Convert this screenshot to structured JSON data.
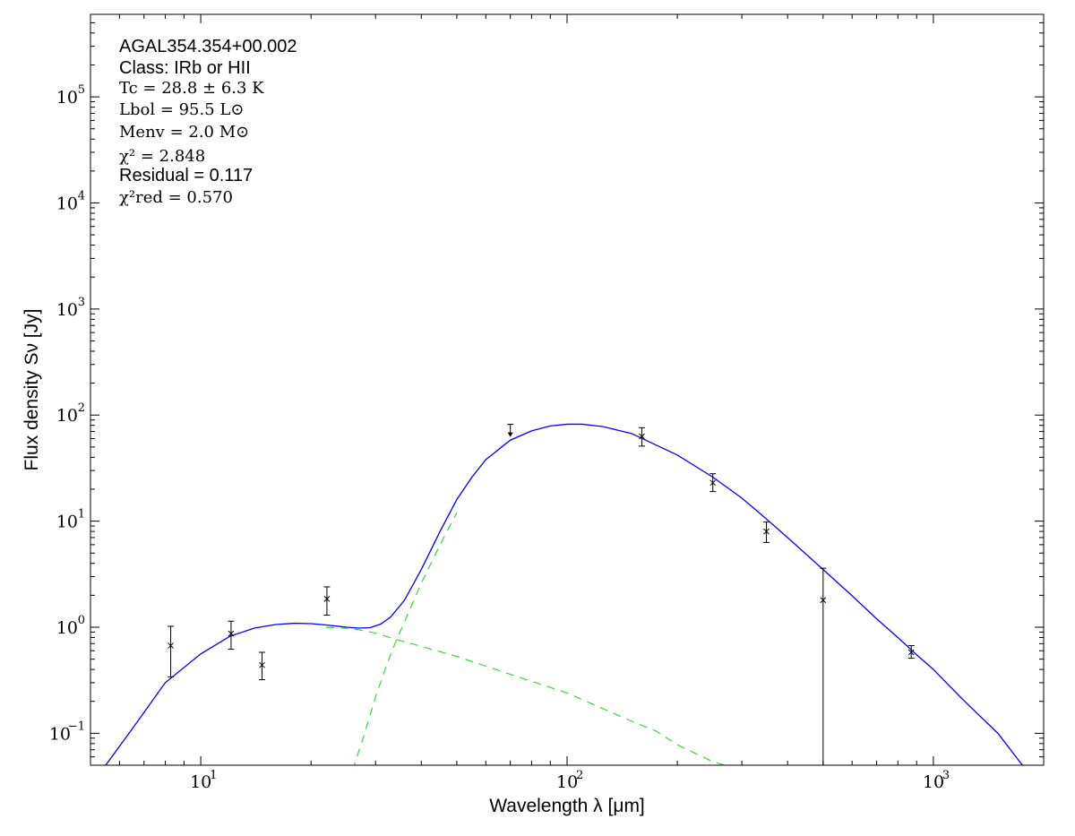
{
  "chart_data": {
    "type": "scatter",
    "x_scale": "log",
    "y_scale": "log",
    "xlim": [
      5,
      2000
    ],
    "ylim": [
      0.05,
      600000
    ],
    "xlabel": "Wavelength λ [μm]",
    "ylabel": "Flux density Sν [Jy]",
    "x_ticks": [
      {
        "value": 10,
        "base": "10",
        "exp": "1"
      },
      {
        "value": 100,
        "base": "10",
        "exp": "2"
      },
      {
        "value": 1000,
        "base": "10",
        "exp": "3"
      }
    ],
    "y_ticks": [
      {
        "value": 0.1,
        "base": "10",
        "exp": "−1"
      },
      {
        "value": 1,
        "base": "10",
        "exp": "0"
      },
      {
        "value": 10,
        "base": "10",
        "exp": "1"
      },
      {
        "value": 100,
        "base": "10",
        "exp": "2"
      },
      {
        "value": 1000,
        "base": "10",
        "exp": "3"
      },
      {
        "value": 10000,
        "base": "10",
        "exp": "4"
      },
      {
        "value": 100000,
        "base": "10",
        "exp": "5"
      }
    ],
    "annotations": [
      {
        "text": "AGAL354.354+00.002",
        "style": "sans"
      },
      {
        "text": "Class: IRb or HII",
        "style": "sans"
      },
      {
        "text": "Tc = 28.8 ± 6.3 K",
        "style": "math"
      },
      {
        "text": "Lbol = 95.5 L⊙",
        "style": "math"
      },
      {
        "text": "Menv = 2.0 M⊙",
        "style": "math"
      },
      {
        "text": "χ² = 2.848",
        "style": "math"
      },
      {
        "text": "Residual = 0.117",
        "style": "sans"
      },
      {
        "text": "χ²red = 0.570",
        "style": "math"
      }
    ],
    "series": [
      {
        "kind": "measurements",
        "color": "#000000",
        "points": [
          {
            "x": 8.28,
            "y": 0.67,
            "err_low": 0.33,
            "err_high": 0.35
          },
          {
            "x": 12.1,
            "y": 0.87,
            "err_low": 0.25,
            "err_high": 0.27
          },
          {
            "x": 14.7,
            "y": 0.44,
            "err_low": 0.12,
            "err_high": 0.14
          },
          {
            "x": 22.1,
            "y": 1.85,
            "err_low": 0.55,
            "err_high": 0.55
          },
          {
            "x": 160,
            "y": 63,
            "err_low": 12,
            "err_high": 13
          },
          {
            "x": 250,
            "y": 23,
            "err_low": 4,
            "err_high": 5
          },
          {
            "x": 350,
            "y": 8,
            "err_low": 1.7,
            "err_high": 1.8
          },
          {
            "x": 500,
            "y": 1.8,
            "err_low": 1.8,
            "err_high": 1.8
          },
          {
            "x": 870,
            "y": 0.58,
            "err_low": 0.07,
            "err_high": 0.09
          }
        ]
      },
      {
        "kind": "upper_limit",
        "color": "#000000",
        "points": [
          {
            "x": 70,
            "y": 70
          }
        ]
      },
      {
        "kind": "fit_total",
        "color": "#0000ff",
        "style": "solid",
        "points": [
          [
            5.5,
            0.05
          ],
          [
            6.5,
            0.11
          ],
          [
            8,
            0.3
          ],
          [
            10,
            0.56
          ],
          [
            12,
            0.82
          ],
          [
            14,
            0.98
          ],
          [
            16,
            1.06
          ],
          [
            18,
            1.09
          ],
          [
            20,
            1.08
          ],
          [
            22,
            1.05
          ],
          [
            25,
            1.0
          ],
          [
            27,
            0.98
          ],
          [
            29,
            0.99
          ],
          [
            31,
            1.07
          ],
          [
            33,
            1.25
          ],
          [
            36,
            1.8
          ],
          [
            40,
            3.5
          ],
          [
            45,
            8
          ],
          [
            50,
            16
          ],
          [
            55,
            26
          ],
          [
            60,
            38
          ],
          [
            70,
            58
          ],
          [
            80,
            71
          ],
          [
            90,
            79
          ],
          [
            100,
            82
          ],
          [
            110,
            82
          ],
          [
            125,
            78
          ],
          [
            150,
            67
          ],
          [
            200,
            42
          ],
          [
            250,
            26
          ],
          [
            300,
            16.5
          ],
          [
            350,
            10.5
          ],
          [
            400,
            7
          ],
          [
            500,
            3.5
          ],
          [
            600,
            1.98
          ],
          [
            700,
            1.2
          ],
          [
            800,
            0.8
          ],
          [
            900,
            0.55
          ],
          [
            1000,
            0.4
          ],
          [
            1200,
            0.21
          ],
          [
            1500,
            0.1
          ],
          [
            1750,
            0.05
          ]
        ]
      },
      {
        "kind": "fit_component",
        "color": "#33dd33",
        "style": "dashed",
        "points": [
          [
            22,
            1.0
          ],
          [
            26,
            0.97
          ],
          [
            30,
            0.88
          ],
          [
            34,
            0.77
          ],
          [
            40,
            0.66
          ],
          [
            50,
            0.53
          ],
          [
            70,
            0.36
          ],
          [
            100,
            0.24
          ],
          [
            150,
            0.13
          ],
          [
            175,
            0.105
          ],
          [
            200,
            0.078
          ],
          [
            250,
            0.054
          ],
          [
            280,
            0.048
          ]
        ]
      },
      {
        "kind": "fit_component",
        "color": "#33dd33",
        "style": "dashed",
        "points": [
          [
            26,
            0.045
          ],
          [
            28,
            0.1
          ],
          [
            30,
            0.22
          ],
          [
            32,
            0.42
          ],
          [
            34,
            0.72
          ],
          [
            37,
            1.4
          ],
          [
            40,
            2.6
          ],
          [
            45,
            6
          ],
          [
            50,
            12
          ]
        ]
      }
    ]
  }
}
